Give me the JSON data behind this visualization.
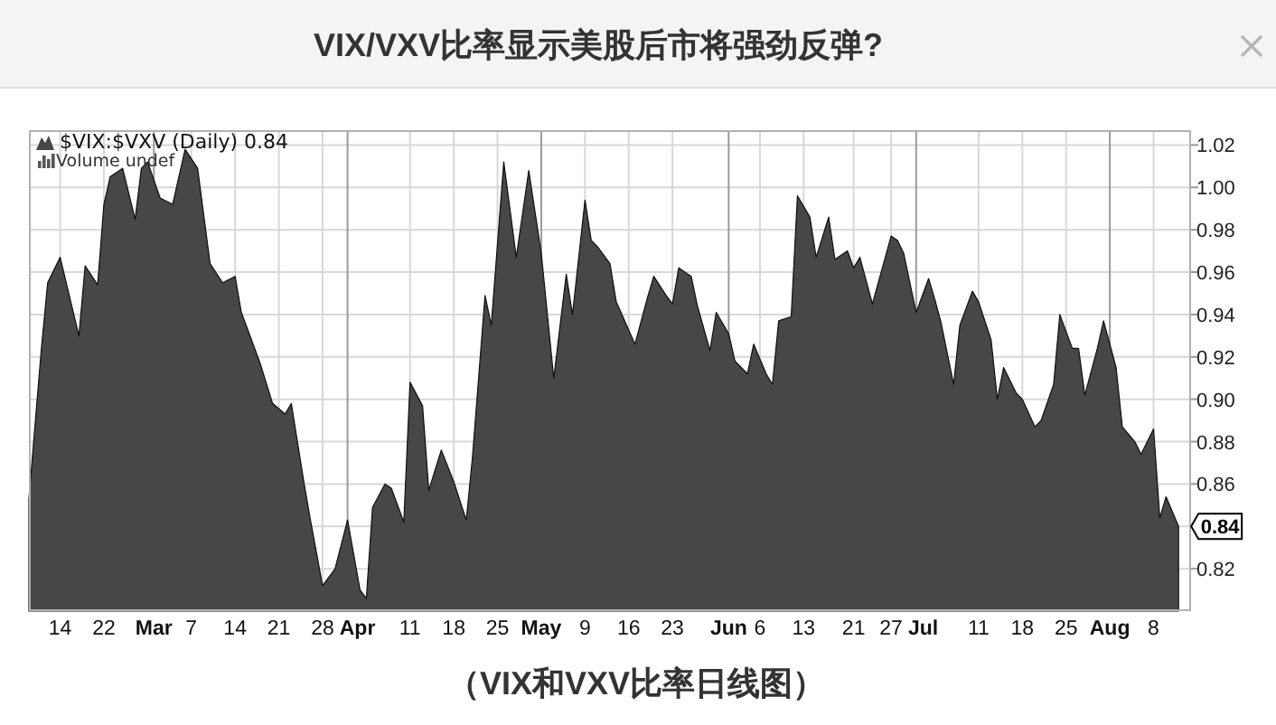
{
  "chart_data": {
    "type": "area",
    "title": "VIX/VXV比率显示美股后市将强劲反弹?",
    "x": [
      "--02-10",
      "--02-12",
      "--02-13",
      "--02-15",
      "--02-18",
      "--02-19",
      "--02-21",
      "--02-22",
      "--02-23",
      "--02-25",
      "--02-27",
      "--02-28",
      "--02-29",
      "--03-02",
      "--03-04",
      "--03-06",
      "--03-08",
      "--03-10",
      "--03-12",
      "--03-14",
      "--03-15",
      "--03-18",
      "--03-20",
      "--03-22",
      "--03-23",
      "--03-25",
      "--03-26",
      "--03-28",
      "--03-30",
      "--04-01",
      "--04-03",
      "--04-04",
      "--04-05",
      "--04-07",
      "--04-08",
      "--04-10",
      "--04-11",
      "--04-13",
      "--04-14",
      "--04-16",
      "--04-18",
      "--04-20",
      "--04-21",
      "--04-23",
      "--04-24",
      "--04-26",
      "--04-28",
      "--04-30",
      "--05-02",
      "--05-04",
      "--05-06",
      "--05-07",
      "--05-09",
      "--05-10",
      "--05-11",
      "--05-13",
      "--05-14",
      "--05-17",
      "--05-19",
      "--05-20",
      "--05-22",
      "--05-23",
      "--05-24",
      "--05-26",
      "--05-27",
      "--05-29",
      "--05-30",
      "--06-01",
      "--06-02",
      "--06-04",
      "--06-05",
      "--06-07",
      "--06-08",
      "--06-09",
      "--06-11",
      "--06-12",
      "--06-14",
      "--06-15",
      "--06-17",
      "--06-18",
      "--06-20",
      "--06-21",
      "--06-22",
      "--06-24",
      "--06-27",
      "--06-28",
      "--06-29",
      "--07-01",
      "--07-03",
      "--07-04",
      "--07-05",
      "--07-07",
      "--07-08",
      "--07-10",
      "--07-11",
      "--07-13",
      "--07-14",
      "--07-15",
      "--07-17",
      "--07-18",
      "--07-20",
      "--07-21",
      "--07-23",
      "--07-24",
      "--07-26",
      "--07-27",
      "--07-28",
      "--07-30",
      "--07-31",
      "--08-02",
      "--08-03",
      "--08-05",
      "--08-06",
      "--08-08",
      "--08-09",
      "--08-10",
      "--08-12"
    ],
    "series": [
      {
        "name": "$VIX:$VXV (Daily) 0.84",
        "color": "#474747",
        "values": [
          0.853,
          0.924,
          0.955,
          0.967,
          0.93,
          0.963,
          0.954,
          0.992,
          1.005,
          1.009,
          0.985,
          1.009,
          1.012,
          0.995,
          0.992,
          1.018,
          1.009,
          0.964,
          0.955,
          0.958,
          0.941,
          0.917,
          0.898,
          0.893,
          0.898,
          0.861,
          0.844,
          0.812,
          0.82,
          0.843,
          0.81,
          0.806,
          0.849,
          0.86,
          0.858,
          0.842,
          0.908,
          0.897,
          0.857,
          0.876,
          0.861,
          0.843,
          0.873,
          0.949,
          0.935,
          1.012,
          0.967,
          1.008,
          0.969,
          0.91,
          0.959,
          0.94,
          0.994,
          0.975,
          0.972,
          0.964,
          0.946,
          0.926,
          0.948,
          0.958,
          0.949,
          0.945,
          0.962,
          0.958,
          0.944,
          0.923,
          0.941,
          0.931,
          0.918,
          0.912,
          0.926,
          0.912,
          0.907,
          0.937,
          0.939,
          0.996,
          0.986,
          0.967,
          0.986,
          0.966,
          0.97,
          0.962,
          0.967,
          0.945,
          0.977,
          0.975,
          0.969,
          0.941,
          0.957,
          0.947,
          0.936,
          0.907,
          0.935,
          0.951,
          0.946,
          0.928,
          0.9,
          0.915,
          0.903,
          0.9,
          0.887,
          0.89,
          0.907,
          0.94,
          0.924,
          0.924,
          0.902,
          0.924,
          0.937,
          0.915,
          0.887,
          0.88,
          0.874,
          0.886,
          0.844,
          0.854,
          0.84
        ]
      }
    ],
    "xlim": [
      "--02-10",
      "--08-14"
    ],
    "xticks": [
      {
        "value": "--02-15",
        "label": "14"
      },
      {
        "value": "--02-22",
        "label": "22"
      },
      {
        "value": "--03-01",
        "label": "Mar"
      },
      {
        "value": "--03-07",
        "label": "7"
      },
      {
        "value": "--03-14",
        "label": "14"
      },
      {
        "value": "--03-21",
        "label": "21"
      },
      {
        "value": "--03-28",
        "label": "28"
      },
      {
        "value": "--04-01",
        "label": "Apr"
      },
      {
        "value": "--04-11",
        "label": "11"
      },
      {
        "value": "--04-18",
        "label": "18"
      },
      {
        "value": "--04-25",
        "label": "25"
      },
      {
        "value": "--05-02",
        "label": "May"
      },
      {
        "value": "--05-09",
        "label": "9"
      },
      {
        "value": "--05-16",
        "label": "16"
      },
      {
        "value": "--05-23",
        "label": "23"
      },
      {
        "value": "--06-01",
        "label": "Jun"
      },
      {
        "value": "--06-06",
        "label": "6"
      },
      {
        "value": "--06-13",
        "label": "13"
      },
      {
        "value": "--06-21",
        "label": "21"
      },
      {
        "value": "--06-27",
        "label": "27"
      },
      {
        "value": "--07-01",
        "label": "Jul"
      },
      {
        "value": "--07-11",
        "label": "11"
      },
      {
        "value": "--07-18",
        "label": "18"
      },
      {
        "value": "--07-25",
        "label": "25"
      },
      {
        "value": "--08-01",
        "label": "Aug"
      },
      {
        "value": "--08-08",
        "label": "8"
      }
    ],
    "ylim": [
      0.8,
      1.027
    ],
    "yticks": [
      0.82,
      {
        "value": 0.84,
        "label": null
      },
      0.86,
      0.88,
      {
        "value": 0.9,
        "label": "0.90"
      },
      0.92,
      0.94,
      0.96,
      0.98,
      {
        "value": 1,
        "label": "1.00"
      },
      1.02
    ],
    "grid": true,
    "legend": "top left",
    "annotations": [
      "Volume undef",
      {
        "text": "0.84",
        "x": "--08-12",
        "y": 0.84
      },
      "（VIX和VXV比率日线图）"
    ]
  }
}
